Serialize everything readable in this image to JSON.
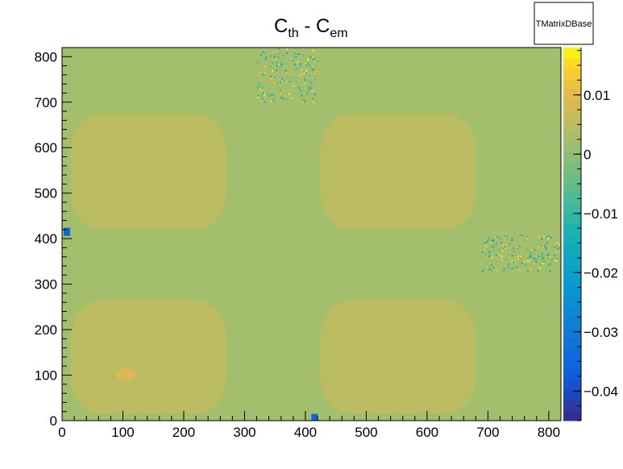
{
  "chart_data": {
    "type": "heatmap",
    "title": {
      "main1": "C",
      "sub1": "th",
      "mid": " - C",
      "sub2": "em"
    },
    "stats_box_label": "TMatrixDBase",
    "xlim": [
      0,
      820
    ],
    "ylim": [
      0,
      820
    ],
    "x_ticks": [
      0,
      100,
      200,
      300,
      400,
      500,
      600,
      700,
      800
    ],
    "y_ticks": [
      0,
      100,
      200,
      300,
      400,
      500,
      600,
      700,
      800
    ],
    "z_range": [
      -0.045,
      0.018
    ],
    "z_ticks": [
      {
        "value": 0.01,
        "label": "0.01"
      },
      {
        "value": 0,
        "label": "0"
      },
      {
        "value": -0.01,
        "label": "−0.01"
      },
      {
        "value": -0.02,
        "label": "−0.02"
      },
      {
        "value": -0.03,
        "label": "−0.03"
      },
      {
        "value": -0.04,
        "label": "−0.04"
      }
    ],
    "background_value": 0.002,
    "blocks": [
      {
        "name": "lower-left-block",
        "x": [
          15,
          270
        ],
        "y": [
          15,
          265
        ],
        "value": 0.005
      },
      {
        "name": "upper-left-block",
        "x": [
          15,
          270
        ],
        "y": [
          420,
          675
        ],
        "value": 0.005
      },
      {
        "name": "lower-right-block",
        "x": [
          425,
          680
        ],
        "y": [
          15,
          265
        ],
        "value": 0.005
      },
      {
        "name": "upper-right-block",
        "x": [
          425,
          680
        ],
        "y": [
          420,
          675
        ],
        "value": 0.005
      }
    ],
    "hotspots": [
      {
        "name": "hotspot-100-100",
        "x": 105,
        "y": 102,
        "value": 0.009
      }
    ],
    "negative_spots": [
      {
        "name": "neg-spot-left",
        "x": 8,
        "y": 415,
        "value": -0.035
      },
      {
        "name": "neg-spot-bottom",
        "x": 415,
        "y": 6,
        "value": -0.035
      }
    ],
    "noise_regions": [
      {
        "name": "noise-top",
        "x": [
          320,
          420
        ],
        "y": [
          700,
          820
        ]
      },
      {
        "name": "noise-right",
        "x": [
          690,
          820
        ],
        "y": [
          330,
          410
        ]
      }
    ]
  }
}
